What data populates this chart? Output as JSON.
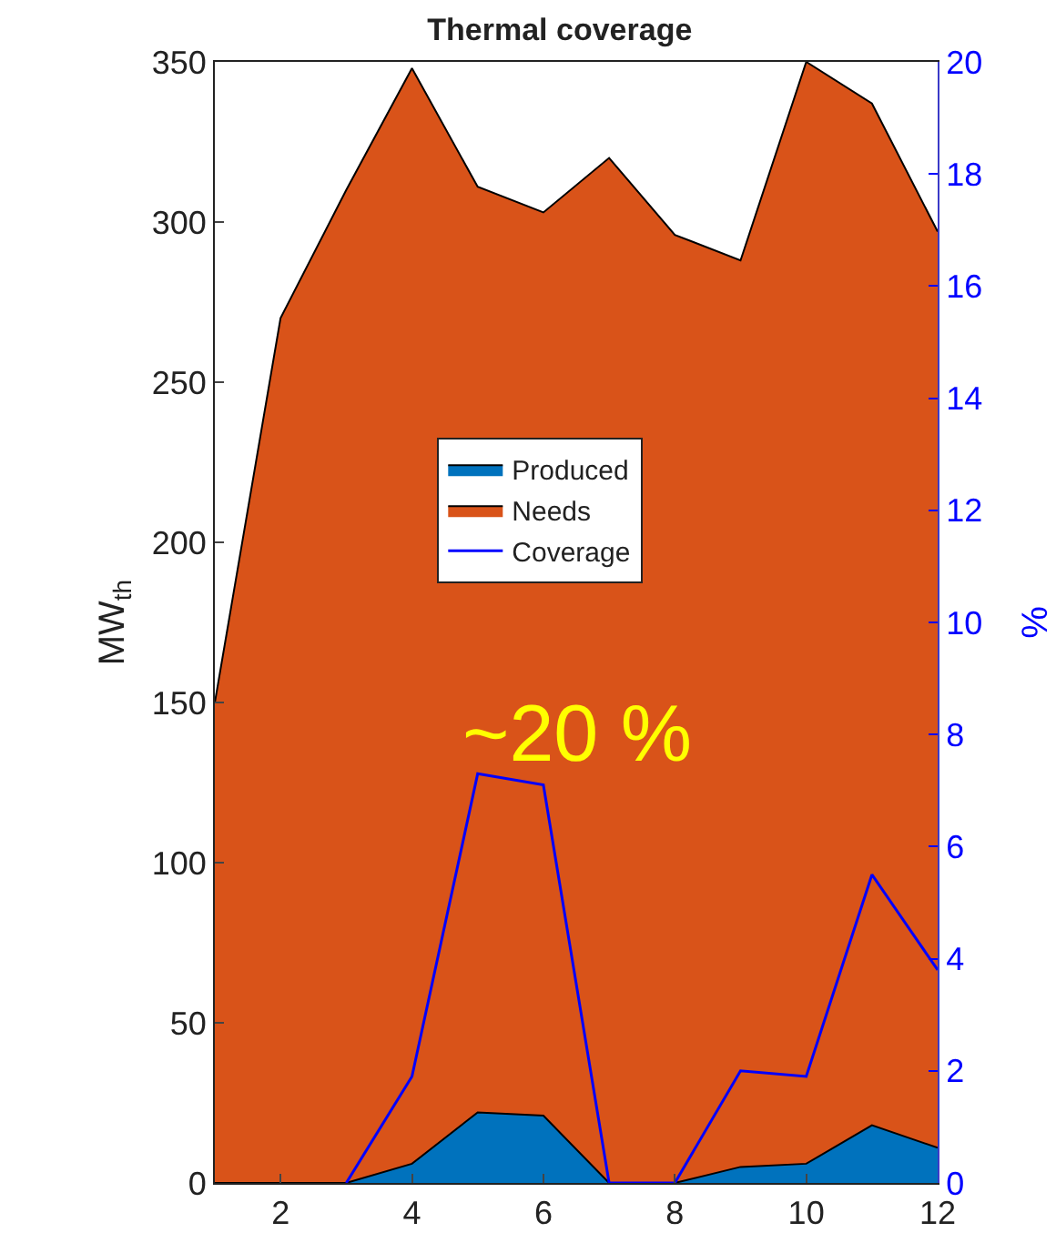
{
  "chart_data": {
    "type": "area",
    "title": "Thermal coverage",
    "ylabel": "MW$_{th}$",
    "y2label": "%",
    "x": [
      1,
      2,
      3,
      4,
      5,
      6,
      7,
      8,
      9,
      10,
      11,
      12
    ],
    "series": [
      {
        "name": "Produced",
        "type": "area",
        "color": "#0072bd",
        "values": [
          0,
          0,
          0,
          6,
          22,
          21,
          0,
          0,
          5,
          6,
          18,
          11
        ]
      },
      {
        "name": "Needs",
        "type": "area",
        "color": "#d95319",
        "values": [
          150,
          270,
          310,
          348,
          311,
          303,
          320,
          296,
          288,
          350,
          337,
          297
        ]
      },
      {
        "name": "Coverage",
        "type": "line",
        "axis": "y2",
        "color": "#0000ff",
        "values": [
          null,
          null,
          0,
          1.9,
          7.3,
          7.1,
          0,
          0,
          2.0,
          1.9,
          5.5,
          3.8
        ]
      }
    ],
    "xlim": [
      1,
      12
    ],
    "xticks": [
      2,
      4,
      6,
      8,
      10,
      12
    ],
    "ylim": [
      0,
      350
    ],
    "yticks": [
      0,
      50,
      100,
      150,
      200,
      250,
      300,
      350
    ],
    "y2lim": [
      0,
      20
    ],
    "y2ticks": [
      0,
      2,
      4,
      6,
      8,
      10,
      12,
      14,
      16,
      18,
      20
    ],
    "annotations": [
      "~20 %"
    ],
    "legend": "center",
    "grid": false
  }
}
